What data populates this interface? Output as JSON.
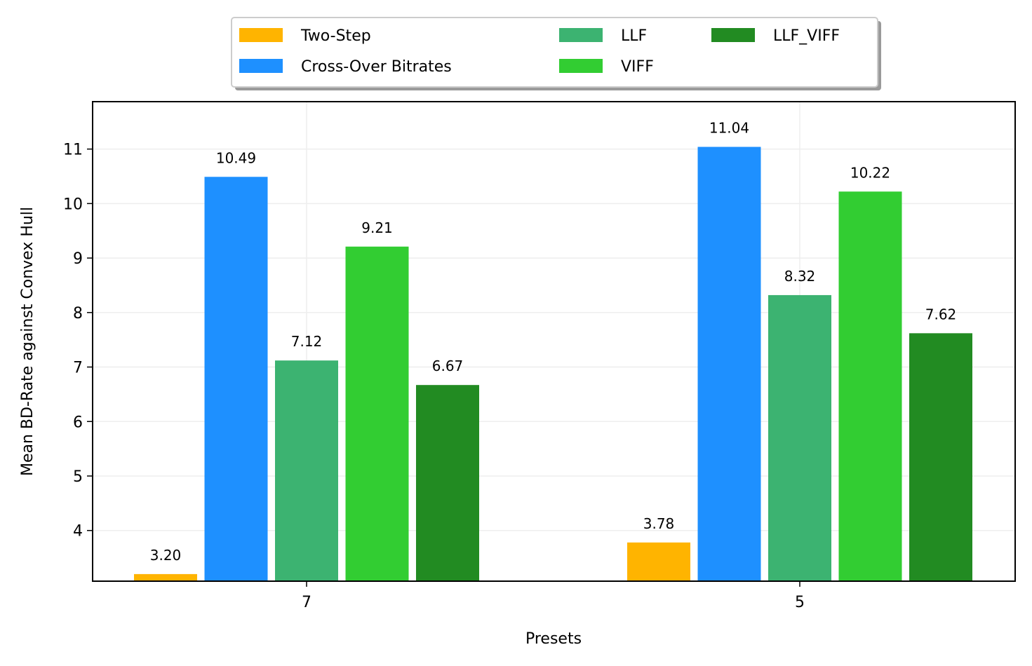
{
  "chart_data": {
    "type": "bar",
    "title": "",
    "xlabel": "Presets",
    "ylabel": "Mean BD-Rate against Convex Hull",
    "categories": [
      "7",
      "5"
    ],
    "series": [
      {
        "name": "Two-Step",
        "values": [
          3.2,
          3.78
        ],
        "labels": [
          "3.20",
          "3.78"
        ],
        "color": "#FFB400"
      },
      {
        "name": "Cross-Over Bitrates",
        "values": [
          10.49,
          11.04
        ],
        "labels": [
          "10.49",
          "11.04"
        ],
        "color": "#1E90FF"
      },
      {
        "name": "LLF",
        "values": [
          7.12,
          8.32
        ],
        "labels": [
          "7.12",
          "8.32"
        ],
        "color": "#3CB371"
      },
      {
        "name": "VIFF",
        "values": [
          9.21,
          10.22
        ],
        "labels": [
          "9.21",
          "10.22"
        ],
        "color": "#32CD32"
      },
      {
        "name": "LLF_VIFF",
        "values": [
          6.67,
          7.62
        ],
        "labels": [
          "6.67",
          "7.62"
        ],
        "color": "#228B22"
      }
    ],
    "ylim": [
      3.07,
      11.87
    ],
    "yticks": [
      4,
      5,
      6,
      7,
      8,
      9,
      10,
      11
    ],
    "grid": true,
    "legend_position": "top-center"
  }
}
